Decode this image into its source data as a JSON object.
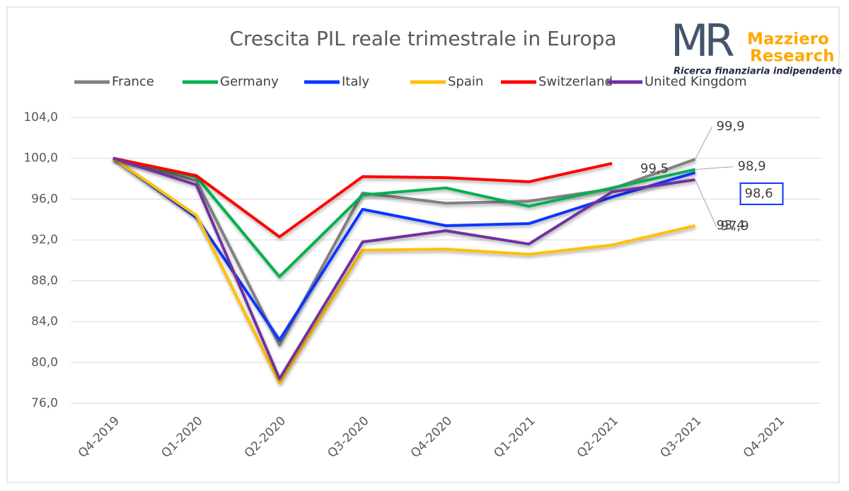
{
  "chart_data": {
    "type": "line",
    "title": "Crescita PIL reale trimestrale in Europa",
    "logo": {
      "mark": "MR",
      "name_1": "Mazziero",
      "name_2": "Research",
      "tagline": "Ricerca finanziaria indipendente"
    },
    "categories": [
      "Q4-2019",
      "Q1-2020",
      "Q2-2020",
      "Q3-2020",
      "Q4-2020",
      "Q1-2021",
      "Q2-2021",
      "Q3-2021",
      "Q4-2021"
    ],
    "ylim": [
      76,
      104
    ],
    "yticks": [
      {
        "value": 76,
        "label": "76,0"
      },
      {
        "value": 80,
        "label": "80,0"
      },
      {
        "value": 84,
        "label": "84,0"
      },
      {
        "value": 88,
        "label": "88,0"
      },
      {
        "value": 92,
        "label": "92,0"
      },
      {
        "value": 96,
        "label": "96,0"
      },
      {
        "value": 100,
        "label": "100,0"
      },
      {
        "value": 104,
        "label": "104,0"
      }
    ],
    "grid": true,
    "legend": "top",
    "series": [
      {
        "name": "France",
        "color": "#808080",
        "values": [
          100,
          97.8,
          81.7,
          96.6,
          95.6,
          95.8,
          97.0,
          99.9,
          null
        ],
        "value_labels": [
          null,
          null,
          null,
          null,
          null,
          null,
          null,
          "99,9",
          null
        ]
      },
      {
        "name": "Germany",
        "color": "#00b050",
        "values": [
          100,
          98.2,
          88.4,
          96.4,
          97.1,
          95.3,
          97.1,
          98.9,
          null
        ],
        "value_labels": [
          null,
          null,
          null,
          null,
          null,
          null,
          null,
          "98,9",
          null
        ]
      },
      {
        "name": "Italy",
        "color": "#0a36ff",
        "values": [
          100,
          94.2,
          82.2,
          95.0,
          93.4,
          93.6,
          96.2,
          98.6,
          null
        ],
        "value_labels": [
          null,
          null,
          null,
          null,
          null,
          null,
          null,
          "98,6",
          null
        ]
      },
      {
        "name": "Spain",
        "color": "#ffc000",
        "values": [
          100,
          94.4,
          78.0,
          91.0,
          91.1,
          90.6,
          91.5,
          93.4,
          null
        ],
        "value_labels": [
          null,
          null,
          null,
          null,
          null,
          null,
          null,
          "93,4",
          null
        ]
      },
      {
        "name": "Switzerland",
        "color": "#ff0000",
        "values": [
          100,
          98.3,
          92.3,
          98.2,
          98.1,
          97.7,
          99.5,
          null,
          null
        ],
        "value_labels": [
          null,
          null,
          null,
          null,
          null,
          null,
          "99,5",
          null,
          null
        ]
      },
      {
        "name": "United Kingdom",
        "color": "#7030a0",
        "values": [
          100,
          97.4,
          78.4,
          91.8,
          92.9,
          91.6,
          96.7,
          97.9,
          null
        ],
        "value_labels": [
          null,
          null,
          null,
          null,
          null,
          null,
          null,
          "97,9",
          null
        ]
      }
    ]
  }
}
